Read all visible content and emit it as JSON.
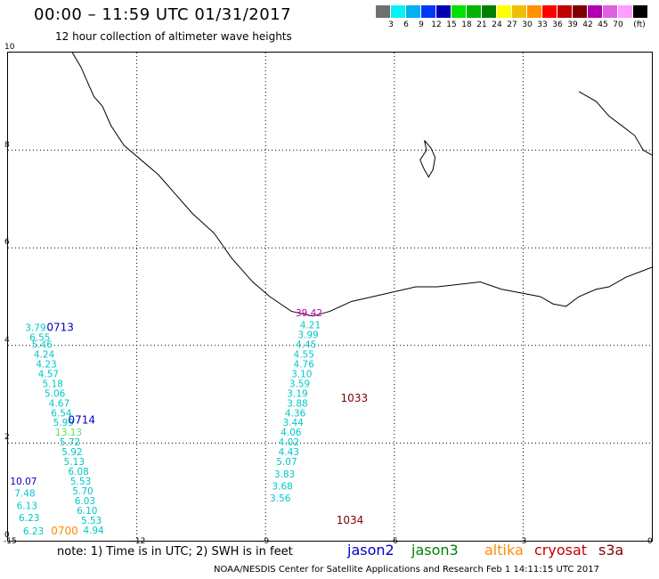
{
  "header": {
    "title": "00:00 – 11:59 UTC 01/31/2017",
    "subtitle": "12 hour collection of altimeter wave heights"
  },
  "colorscale": {
    "unit": "(ft)",
    "swatches": [
      {
        "color": "#707070",
        "label": ""
      },
      {
        "color": "#00f4f4",
        "label": "3"
      },
      {
        "color": "#00b0f0",
        "label": "6"
      },
      {
        "color": "#0038f8",
        "label": "9"
      },
      {
        "color": "#0000b0",
        "label": "12"
      },
      {
        "color": "#00e000",
        "label": "15"
      },
      {
        "color": "#00b400",
        "label": "18"
      },
      {
        "color": "#008000",
        "label": "21"
      },
      {
        "color": "#ffff00",
        "label": "24"
      },
      {
        "color": "#f0c000",
        "label": "27"
      },
      {
        "color": "#ff9000",
        "label": "30"
      },
      {
        "color": "#ff0000",
        "label": "33"
      },
      {
        "color": "#c00000",
        "label": "36"
      },
      {
        "color": "#800000",
        "label": "39"
      },
      {
        "color": "#b000b0",
        "label": "42"
      },
      {
        "color": "#e060e0",
        "label": "45"
      },
      {
        "color": "#ff9cff",
        "label": "70"
      },
      {
        "color": "#000000",
        "label": ""
      }
    ]
  },
  "map": {
    "lon_range": [
      -15,
      0
    ],
    "lat_range": [
      0,
      10
    ],
    "x_ticks": [
      "-15",
      "-12",
      "-9",
      "-6",
      "-3",
      "0"
    ],
    "y_ticks": [
      "0",
      "2",
      "4",
      "6",
      "8",
      "10"
    ],
    "coast_color": "#000000"
  },
  "tracks": [
    {
      "sat": "jason2",
      "times": [
        {
          "label": "0713",
          "color": "#0000c0",
          "lon": -14.1,
          "lat": 4.3
        },
        {
          "label": "0714",
          "color": "#0000c0",
          "lon": -13.6,
          "lat": 2.4
        }
      ],
      "points": [
        {
          "v": "3.79",
          "lon": -14.6,
          "lat": 4.3,
          "c": "#00c8c8"
        },
        {
          "v": "6.55",
          "lon": -14.5,
          "lat": 4.1,
          "c": "#00c8c8"
        },
        {
          "v": "5.46",
          "lon": -14.45,
          "lat": 3.95,
          "c": "#00c8c8"
        },
        {
          "v": "4.24",
          "lon": -14.4,
          "lat": 3.75,
          "c": "#00c8c8"
        },
        {
          "v": "4.23",
          "lon": -14.35,
          "lat": 3.55,
          "c": "#00c8c8"
        },
        {
          "v": "4.57",
          "lon": -14.3,
          "lat": 3.35,
          "c": "#00c8c8"
        },
        {
          "v": "5.18",
          "lon": -14.2,
          "lat": 3.15,
          "c": "#00c8c8"
        },
        {
          "v": "5.06",
          "lon": -14.15,
          "lat": 2.95,
          "c": "#00c8c8"
        },
        {
          "v": "4.67",
          "lon": -14.05,
          "lat": 2.75,
          "c": "#00c8c8"
        },
        {
          "v": "6.54",
          "lon": -14.0,
          "lat": 2.55,
          "c": "#00c8c8"
        },
        {
          "v": "5.99",
          "lon": -13.95,
          "lat": 2.35,
          "c": "#00c8c8"
        },
        {
          "v": "13.13",
          "lon": -13.9,
          "lat": 2.15,
          "c": "#60e060"
        },
        {
          "v": "5.72",
          "lon": -13.8,
          "lat": 1.95,
          "c": "#00c8c8"
        },
        {
          "v": "5.92",
          "lon": -13.75,
          "lat": 1.75,
          "c": "#00c8c8"
        },
        {
          "v": "5.13",
          "lon": -13.7,
          "lat": 1.55,
          "c": "#00c8c8"
        },
        {
          "v": "6.08",
          "lon": -13.6,
          "lat": 1.35,
          "c": "#00c8c8"
        },
        {
          "v": "5.53",
          "lon": -13.55,
          "lat": 1.15,
          "c": "#00c8c8"
        },
        {
          "v": "5.70",
          "lon": -13.5,
          "lat": 0.95,
          "c": "#00c8c8"
        },
        {
          "v": "6.03",
          "lon": -13.45,
          "lat": 0.75,
          "c": "#00c8c8"
        },
        {
          "v": "6.10",
          "lon": -13.4,
          "lat": 0.55,
          "c": "#00c8c8"
        },
        {
          "v": "5.53",
          "lon": -13.3,
          "lat": 0.35,
          "c": "#00c8c8"
        },
        {
          "v": "4.94",
          "lon": -13.25,
          "lat": 0.15,
          "c": "#00c8c8"
        }
      ]
    },
    {
      "sat": "altika",
      "times": [
        {
          "label": "0700",
          "color": "#ff8c00",
          "lon": -14.0,
          "lat": 0.13
        }
      ],
      "points": [
        {
          "v": "10.07",
          "lon": -14.95,
          "lat": 1.15,
          "c": "#0000c0"
        },
        {
          "v": "7.48",
          "lon": -14.85,
          "lat": 0.9,
          "c": "#00c8c8"
        },
        {
          "v": "6.13",
          "lon": -14.8,
          "lat": 0.65,
          "c": "#00c8c8"
        },
        {
          "v": "6.23",
          "lon": -14.75,
          "lat": 0.4,
          "c": "#00c8c8"
        },
        {
          "v": "6.23",
          "lon": -14.65,
          "lat": 0.13,
          "c": "#00c8c8"
        }
      ]
    },
    {
      "sat": "cryosat",
      "times": [
        {
          "label": "1033",
          "color": "#800000",
          "lon": -7.25,
          "lat": 2.85
        },
        {
          "label": "1034",
          "color": "#800000",
          "lon": -7.35,
          "lat": 0.35
        }
      ],
      "points": [
        {
          "v": "39.42",
          "lon": -8.3,
          "lat": 4.6,
          "c": "#b000b0"
        },
        {
          "v": "4.21",
          "lon": -8.2,
          "lat": 4.35,
          "c": "#00c8c8"
        },
        {
          "v": "3.99",
          "lon": -8.25,
          "lat": 4.15,
          "c": "#00c8c8"
        },
        {
          "v": "4.45",
          "lon": -8.3,
          "lat": 3.95,
          "c": "#00c8c8"
        },
        {
          "v": "4.55",
          "lon": -8.35,
          "lat": 3.75,
          "c": "#00c8c8"
        },
        {
          "v": "4.76",
          "lon": -8.35,
          "lat": 3.55,
          "c": "#00c8c8"
        },
        {
          "v": "3.10",
          "lon": -8.4,
          "lat": 3.35,
          "c": "#00c8c8"
        },
        {
          "v": "3.59",
          "lon": -8.45,
          "lat": 3.15,
          "c": "#00c8c8"
        },
        {
          "v": "3.19",
          "lon": -8.5,
          "lat": 2.95,
          "c": "#00c8c8"
        },
        {
          "v": "3.88",
          "lon": -8.5,
          "lat": 2.75,
          "c": "#00c8c8"
        },
        {
          "v": "4.36",
          "lon": -8.55,
          "lat": 2.55,
          "c": "#00c8c8"
        },
        {
          "v": "3.44",
          "lon": -8.6,
          "lat": 2.35,
          "c": "#00c8c8"
        },
        {
          "v": "4.06",
          "lon": -8.65,
          "lat": 2.15,
          "c": "#00c8c8"
        },
        {
          "v": "4.02",
          "lon": -8.7,
          "lat": 1.95,
          "c": "#00c8c8"
        },
        {
          "v": "4.43",
          "lon": -8.7,
          "lat": 1.75,
          "c": "#00c8c8"
        },
        {
          "v": "5.07",
          "lon": -8.75,
          "lat": 1.55,
          "c": "#00c8c8"
        },
        {
          "v": "3.83",
          "lon": -8.8,
          "lat": 1.3,
          "c": "#00c8c8"
        },
        {
          "v": "3.68",
          "lon": -8.85,
          "lat": 1.05,
          "c": "#00c8c8"
        },
        {
          "v": "3.56",
          "lon": -8.9,
          "lat": 0.8,
          "c": "#00c8c8"
        }
      ]
    }
  ],
  "footer": {
    "note": "note: 1) Time is in UTC; 2) SWH is in feet",
    "legend": [
      {
        "name": "jason2",
        "color": "#0000c0"
      },
      {
        "name": "jason3",
        "color": "#008000"
      },
      {
        "name": "altika",
        "color": "#ff8c00"
      },
      {
        "name": "cryosat",
        "color": "#c00000"
      },
      {
        "name": "s3a",
        "color": "#800000"
      }
    ],
    "credit": "NOAA/NESDIS Center for Satellite Applications and Research    Feb  1 14:11:15 UTC 2017"
  }
}
